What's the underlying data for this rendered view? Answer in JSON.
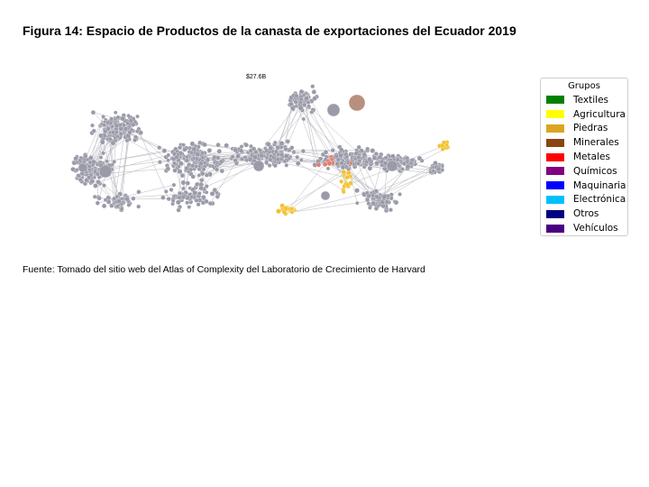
{
  "figure": {
    "title": "Figura 14: Espacio de Productos de la canasta de exportaciones del Ecuador 2019",
    "total_label": "$27.6B",
    "source": "Fuente: Tomado del sitio web del Atlas of Complexity del Laboratorio de Crecimiento de Harvard"
  },
  "legend": {
    "title": "Grupos",
    "items": [
      {
        "label": "Textiles",
        "color": "#008000"
      },
      {
        "label": "Agricultura",
        "color": "#ffff00"
      },
      {
        "label": "Piedras",
        "color": "#daa520"
      },
      {
        "label": "Minerales",
        "color": "#8b4513"
      },
      {
        "label": "Metales",
        "color": "#ff0000"
      },
      {
        "label": "Químicos",
        "color": "#800080"
      },
      {
        "label": "Maquinaria",
        "color": "#0000ff"
      },
      {
        "label": "Electrónica",
        "color": "#00bfff"
      },
      {
        "label": "Otros",
        "color": "#000080"
      },
      {
        "label": "Vehículos",
        "color": "#4b0082"
      }
    ]
  },
  "colors": {
    "node_default": "#9a9aa8",
    "edge": "#b8b8bf",
    "highlight_agri": "#f2c230",
    "highlight_metal": "#e08070",
    "highlight_large": "#b89080"
  }
}
